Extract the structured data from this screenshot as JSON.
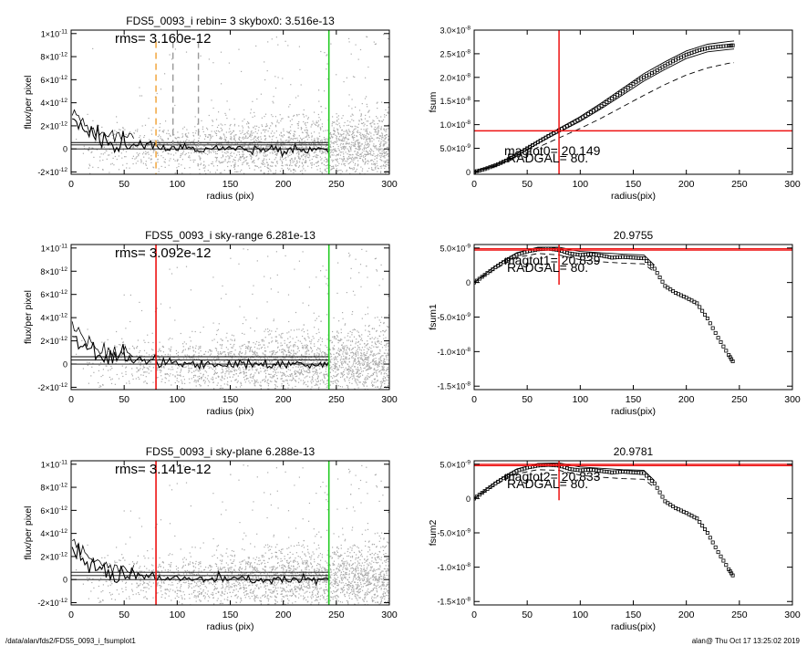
{
  "footer": {
    "path": "/data/alan/fds2/FDS5_0093_i_fsumplot1",
    "stamp": "alan@  Thu Oct 17 13:25:02 2019"
  },
  "colors": {
    "scatter": "#aaaaaa",
    "profile": "#000000",
    "red": "#ee1111",
    "green": "#22cc22",
    "orange": "#f0a030",
    "dash_gray": "#999999"
  },
  "chart_data": [
    {
      "id": "left-1",
      "type": "scatter",
      "title": "FDS5_0093_i rebin= 3    skybox0:  3.516e-13",
      "annotation": "rms= 3.160e-12",
      "xlabel": "radius (pix)",
      "ylabel": "flux/per pixel",
      "xlim": [
        0,
        300
      ],
      "ylim": [
        -2.2e-12,
        1.03e-11
      ],
      "xticks": [
        0,
        50,
        100,
        150,
        200,
        250,
        300
      ],
      "xtick_labels": [
        "0",
        "50",
        "100",
        "150",
        "200",
        "250",
        "300"
      ],
      "yticks": [
        -2e-12,
        0,
        2e-12,
        4e-12,
        6e-12,
        8e-12,
        1e-11
      ],
      "ytick_labels": [
        [
          "-2×10",
          "-12"
        ],
        [
          "0",
          ""
        ],
        [
          "2×10",
          "-12"
        ],
        [
          "4×10",
          "-12"
        ],
        [
          "6×10",
          "-12"
        ],
        [
          "8×10",
          "-12"
        ],
        [
          "1×10",
          "-11"
        ]
      ],
      "hlines": [
        0,
        3.5e-13,
        5.5e-13
      ],
      "vlines": [
        {
          "x": 80,
          "color": "orange",
          "dash": true,
          "full": true
        },
        {
          "x": 96,
          "color": "dash_gray",
          "dash": true,
          "full": false
        },
        {
          "x": 120,
          "color": "dash_gray",
          "dash": true,
          "full": false
        },
        {
          "x": 243,
          "color": "green",
          "dash": false,
          "full": true
        }
      ]
    },
    {
      "id": "right-1",
      "type": "line",
      "title": "",
      "annotation": "magtot0= 20.149",
      "annotation2": "RADGAL=     80.",
      "xlabel": "radius(pix)",
      "ylabel": "fsum",
      "xlim": [
        0,
        300
      ],
      "ylim": [
        -5e-10,
        3e-08
      ],
      "xticks": [
        0,
        50,
        100,
        150,
        200,
        250,
        300
      ],
      "xtick_labels": [
        "0",
        "50",
        "100",
        "150",
        "200",
        "250",
        "300"
      ],
      "yticks": [
        0,
        5e-09,
        1e-08,
        1.5e-08,
        2e-08,
        2.5e-08,
        3e-08
      ],
      "ytick_labels": [
        [
          "0",
          ""
        ],
        [
          "5.0×10",
          "-9"
        ],
        [
          "1.0×10",
          "-8"
        ],
        [
          "1.5×10",
          "-8"
        ],
        [
          "2.0×10",
          "-8"
        ],
        [
          "2.5×10",
          "-8"
        ],
        [
          "3.0×10",
          "-8"
        ]
      ],
      "crosshair": {
        "x": 80,
        "y": 8.7e-09
      },
      "series": [
        {
          "style": "symbols",
          "x": [
            0,
            10,
            20,
            30,
            40,
            50,
            60,
            70,
            80,
            90,
            100,
            110,
            120,
            130,
            140,
            150,
            160,
            170,
            180,
            190,
            200,
            210,
            220,
            230,
            240,
            245
          ],
          "y": [
            0,
            6e-10,
            1.4e-09,
            2.4e-09,
            3.6e-09,
            5e-09,
            6.3e-09,
            7.6e-09,
            8.8e-09,
            1e-08,
            1.12e-08,
            1.26e-08,
            1.4e-08,
            1.55e-08,
            1.7e-08,
            1.86e-08,
            2e-08,
            2.12e-08,
            2.25e-08,
            2.37e-08,
            2.48e-08,
            2.56e-08,
            2.62e-08,
            2.65e-08,
            2.67e-08,
            2.68e-08
          ]
        },
        {
          "style": "solid",
          "x": [
            0,
            20,
            40,
            60,
            80,
            100,
            120,
            140,
            160,
            180,
            200,
            220,
            240,
            245
          ],
          "y": [
            0,
            1.5e-09,
            3.8e-09,
            6.6e-09,
            9.2e-09,
            1.17e-08,
            1.46e-08,
            1.77e-08,
            2.08e-08,
            2.33e-08,
            2.56e-08,
            2.7e-08,
            2.76e-08,
            2.77e-08
          ]
        },
        {
          "style": "solid",
          "x": [
            0,
            20,
            40,
            60,
            80,
            100,
            120,
            140,
            160,
            180,
            200,
            220,
            240,
            245
          ],
          "y": [
            0,
            1.3e-09,
            3.4e-09,
            6e-09,
            8.4e-09,
            1.07e-08,
            1.34e-08,
            1.63e-08,
            1.92e-08,
            2.17e-08,
            2.4e-08,
            2.54e-08,
            2.59e-08,
            2.6e-08
          ]
        },
        {
          "style": "dashed",
          "x": [
            0,
            20,
            40,
            60,
            80,
            100,
            120,
            140,
            160,
            180,
            200,
            220,
            240,
            245
          ],
          "y": [
            0,
            1.2e-09,
            3e-09,
            5.2e-09,
            7.2e-09,
            9.2e-09,
            1.14e-08,
            1.38e-08,
            1.62e-08,
            1.85e-08,
            2.05e-08,
            2.2e-08,
            2.3e-08,
            2.31e-08
          ]
        }
      ]
    },
    {
      "id": "left-2",
      "type": "scatter",
      "title": "FDS5_0093_i sky-range  6.281e-13",
      "annotation": "rms= 3.092e-12",
      "xlabel": "radius (pix)",
      "ylabel": "flux/per pixel",
      "xlim": [
        0,
        300
      ],
      "ylim": [
        -2.2e-12,
        1.03e-11
      ],
      "xticks": [
        0,
        50,
        100,
        150,
        200,
        250,
        300
      ],
      "xtick_labels": [
        "0",
        "50",
        "100",
        "150",
        "200",
        "250",
        "300"
      ],
      "yticks": [
        -2e-12,
        0,
        2e-12,
        4e-12,
        6e-12,
        8e-12,
        1e-11
      ],
      "ytick_labels": [
        [
          "-2×10",
          "-12"
        ],
        [
          "0",
          ""
        ],
        [
          "2×10",
          "-12"
        ],
        [
          "4×10",
          "-12"
        ],
        [
          "6×10",
          "-12"
        ],
        [
          "8×10",
          "-12"
        ],
        [
          "1×10",
          "-11"
        ]
      ],
      "hlines": [
        0,
        6.3e-13,
        3.5e-13
      ],
      "vlines": [
        {
          "x": 80,
          "color": "red",
          "dash": false,
          "full": true
        },
        {
          "x": 243,
          "color": "green",
          "dash": false,
          "full": true
        }
      ]
    },
    {
      "id": "right-2",
      "type": "line",
      "title": "20.9755",
      "annotation": "magtot1= 20.839",
      "annotation2": "RADGAL=     80.",
      "xlabel": "radius(pix)",
      "ylabel": "fsum1",
      "xlim": [
        0,
        300
      ],
      "ylim": [
        -1.55e-08,
        5.5e-09
      ],
      "xticks": [
        0,
        50,
        100,
        150,
        200,
        250,
        300
      ],
      "xtick_labels": [
        "0",
        "50",
        "100",
        "150",
        "200",
        "250",
        "300"
      ],
      "yticks": [
        -1.5e-08,
        -1e-08,
        -5e-09,
        0,
        5e-09
      ],
      "ytick_labels": [
        [
          "-1.5×10",
          "-8"
        ],
        [
          "-1.0×10",
          "-8"
        ],
        [
          "-5.0×10",
          "-9"
        ],
        [
          "0",
          ""
        ],
        [
          "5.0×10",
          "-9"
        ]
      ],
      "crosshair": {
        "x": 80,
        "y": 4.7e-09,
        "y2": 4.9e-09
      },
      "series": [
        {
          "style": "symbols",
          "x": [
            0,
            10,
            20,
            30,
            40,
            50,
            60,
            70,
            80,
            90,
            100,
            110,
            120,
            130,
            140,
            150,
            160,
            170,
            180,
            190,
            200,
            210,
            220,
            230,
            240,
            245
          ],
          "y": [
            0,
            1.1e-09,
            2.2e-09,
            3.2e-09,
            4e-09,
            4.5e-09,
            4.8e-09,
            4.9e-09,
            4.7e-09,
            4.2e-09,
            4e-09,
            4.1e-09,
            3.9e-09,
            3.6e-09,
            3.7e-09,
            3.6e-09,
            3.5e-09,
            2e-09,
            -5e-10,
            -1.5e-09,
            -2.2e-09,
            -3e-09,
            -5.2e-09,
            -8e-09,
            -1.05e-08,
            -1.17e-08
          ]
        },
        {
          "style": "solid",
          "x": [
            0,
            20,
            40,
            60,
            80,
            100,
            120,
            140,
            160,
            170
          ],
          "y": [
            0,
            2.4e-09,
            4.3e-09,
            5.1e-09,
            5.1e-09,
            4.5e-09,
            4.3e-09,
            4.1e-09,
            4e-09,
            2.5e-09
          ]
        },
        {
          "style": "dashed",
          "x": [
            0,
            20,
            40,
            60,
            80,
            100,
            120,
            140,
            160,
            170
          ],
          "y": [
            0,
            2e-09,
            3.6e-09,
            4.2e-09,
            4e-09,
            3.3e-09,
            3e-09,
            2.8e-09,
            2.7e-09,
            1.5e-09
          ]
        }
      ]
    },
    {
      "id": "left-3",
      "type": "scatter",
      "title": "FDS5_0093_i sky-plane  6.288e-13",
      "annotation": "rms= 3.141e-12",
      "xlabel": "radius (pix)",
      "ylabel": "flux/per pixel",
      "xlim": [
        0,
        300
      ],
      "ylim": [
        -2.2e-12,
        1.03e-11
      ],
      "xticks": [
        0,
        50,
        100,
        150,
        200,
        250,
        300
      ],
      "xtick_labels": [
        "0",
        "50",
        "100",
        "150",
        "200",
        "250",
        "300"
      ],
      "yticks": [
        -2e-12,
        0,
        2e-12,
        4e-12,
        6e-12,
        8e-12,
        1e-11
      ],
      "ytick_labels": [
        [
          "-2×10",
          "-12"
        ],
        [
          "0",
          ""
        ],
        [
          "2×10",
          "-12"
        ],
        [
          "4×10",
          "-12"
        ],
        [
          "6×10",
          "-12"
        ],
        [
          "8×10",
          "-12"
        ],
        [
          "1×10",
          "-11"
        ]
      ],
      "hlines": [
        0,
        6.3e-13,
        3.5e-13
      ],
      "vlines": [
        {
          "x": 80,
          "color": "red",
          "dash": false,
          "full": true
        },
        {
          "x": 243,
          "color": "green",
          "dash": false,
          "full": true
        }
      ]
    },
    {
      "id": "right-3",
      "type": "line",
      "title": "20.9781",
      "annotation": "magtot2= 20.833",
      "annotation2": "RADGAL=     80.",
      "xlabel": "radius(pix)",
      "ylabel": "fsum2",
      "xlim": [
        0,
        300
      ],
      "ylim": [
        -1.55e-08,
        5.5e-09
      ],
      "xticks": [
        0,
        50,
        100,
        150,
        200,
        250,
        300
      ],
      "xtick_labels": [
        "0",
        "50",
        "100",
        "150",
        "200",
        "250",
        "300"
      ],
      "yticks": [
        -1.5e-08,
        -1e-08,
        -5e-09,
        0,
        5e-09
      ],
      "ytick_labels": [
        [
          "-1.5×10",
          "-8"
        ],
        [
          "-1.0×10",
          "-8"
        ],
        [
          "-5.0×10",
          "-9"
        ],
        [
          "0",
          ""
        ],
        [
          "5.0×10",
          "-9"
        ]
      ],
      "crosshair": {
        "x": 80,
        "y": 4.8e-09,
        "y2": 5e-09
      },
      "series": [
        {
          "style": "symbols",
          "x": [
            0,
            10,
            20,
            30,
            40,
            50,
            60,
            70,
            80,
            90,
            100,
            110,
            120,
            130,
            140,
            150,
            160,
            170,
            180,
            190,
            200,
            210,
            220,
            230,
            240,
            245
          ],
          "y": [
            0,
            1.1e-09,
            2.2e-09,
            3.2e-09,
            4e-09,
            4.5e-09,
            4.8e-09,
            4.9e-09,
            4.8e-09,
            4.3e-09,
            4.1e-09,
            4.2e-09,
            4e-09,
            3.8e-09,
            3.9e-09,
            3.8e-09,
            3.7e-09,
            2.2e-09,
            -4e-10,
            -1.4e-09,
            -2.1e-09,
            -2.9e-09,
            -5e-09,
            -7.8e-09,
            -1.03e-08,
            -1.15e-08
          ]
        },
        {
          "style": "solid",
          "x": [
            0,
            20,
            40,
            60,
            80,
            100,
            120,
            140,
            160,
            170
          ],
          "y": [
            0,
            2.4e-09,
            4.3e-09,
            5.1e-09,
            5.2e-09,
            4.6e-09,
            4.4e-09,
            4.2e-09,
            4.1e-09,
            2.6e-09
          ]
        },
        {
          "style": "dashed",
          "x": [
            0,
            20,
            40,
            60,
            80,
            100,
            120,
            140,
            160,
            170
          ],
          "y": [
            0,
            2e-09,
            3.6e-09,
            4.2e-09,
            4.1e-09,
            3.4e-09,
            3.1e-09,
            2.9e-09,
            2.8e-09,
            1.6e-09
          ]
        }
      ]
    }
  ]
}
